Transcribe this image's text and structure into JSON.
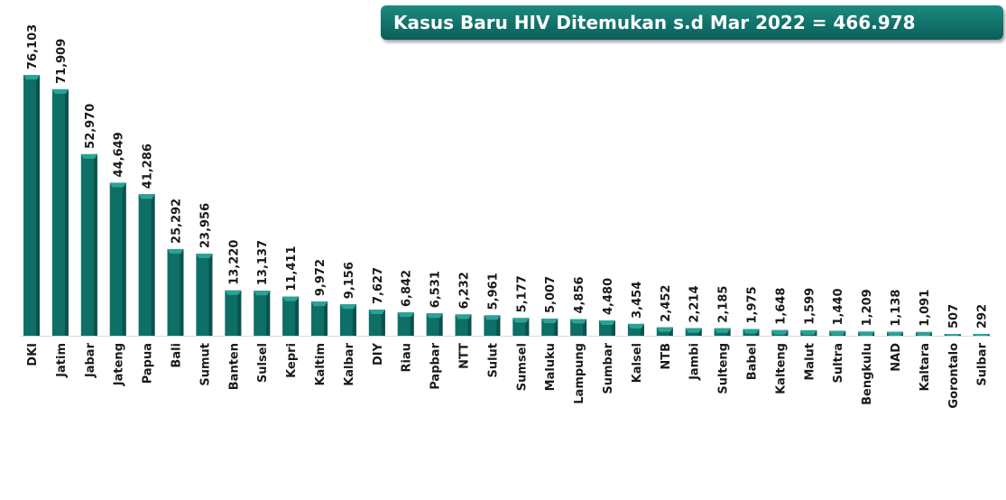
{
  "title": "Kasus Baru HIV Ditemukan s.d Mar 2022 = 466.978",
  "colors": {
    "bar": "#0e6f67",
    "bar_dark": "#0a524c",
    "bar_top": "#2aa396",
    "title_bg": "#0f726a"
  },
  "chart_data": {
    "type": "bar",
    "title": "Kasus Baru HIV Ditemukan s.d Mar 2022 = 466.978",
    "xlabel": "",
    "ylabel": "",
    "ylim": [
      0,
      76103
    ],
    "grid": false,
    "categories": [
      "DKI",
      "Jatim",
      "Jabar",
      "Jateng",
      "Papua",
      "Bali",
      "Sumut",
      "Banten",
      "Sulsel",
      "Kepri",
      "Kaltim",
      "Kalbar",
      "DIY",
      "Riau",
      "Papbar",
      "NTT",
      "Sulut",
      "Sumsel",
      "Maluku",
      "Lampung",
      "Sumbar",
      "Kalsel",
      "NTB",
      "Jambi",
      "Sulteng",
      "Babel",
      "Kalteng",
      "Malut",
      "Sultra",
      "Bengkulu",
      "NAD",
      "Kaltara",
      "Gorontalo",
      "Sulbar"
    ],
    "values": [
      76103,
      71909,
      52970,
      44649,
      41286,
      25292,
      23956,
      13220,
      13137,
      11411,
      9972,
      9156,
      7627,
      6842,
      6531,
      6232,
      5961,
      5177,
      5007,
      4856,
      4480,
      3454,
      2452,
      2214,
      2185,
      1975,
      1648,
      1599,
      1440,
      1209,
      1138,
      1091,
      507,
      292
    ],
    "labels": [
      "76,103",
      "71,909",
      "52,970",
      "44,649",
      "41,286",
      "25,292",
      "23,956",
      "13,220",
      "13,137",
      "11,411",
      "9,972",
      "9,156",
      "7,627",
      "6,842",
      "6,531",
      "6,232",
      "5,961",
      "5,177",
      "5,007",
      "4,856",
      "4,480",
      "3,454",
      "2,452",
      "2,214",
      "2,185",
      "1,975",
      "1,648",
      "1,599",
      "1,440",
      "1,209",
      "1,138",
      "1,091",
      "507",
      "292"
    ]
  }
}
